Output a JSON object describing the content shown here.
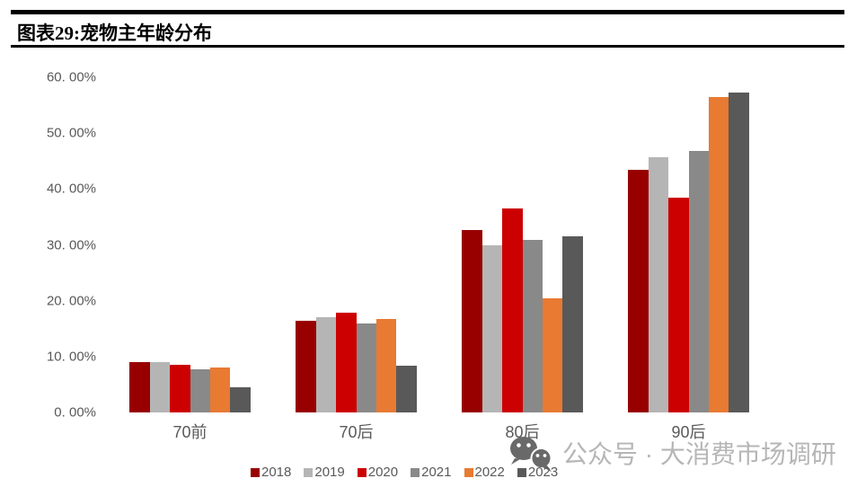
{
  "header": {
    "title": "图表29:宠物主年龄分布"
  },
  "chart_data": {
    "type": "bar",
    "title": "宠物主年龄分布",
    "categories": [
      "70前",
      "70后",
      "80后",
      "90后"
    ],
    "series": [
      {
        "name": "2018",
        "color": "#980000",
        "values": [
          9.0,
          16.4,
          32.7,
          43.4
        ]
      },
      {
        "name": "2019",
        "color": "#B5B5B5",
        "values": [
          9.0,
          17.0,
          30.0,
          45.7
        ]
      },
      {
        "name": "2020",
        "color": "#CC0000",
        "values": [
          8.5,
          17.9,
          36.5,
          38.5
        ]
      },
      {
        "name": "2021",
        "color": "#898989",
        "values": [
          7.8,
          16.0,
          30.9,
          46.8
        ]
      },
      {
        "name": "2022",
        "color": "#E87A32",
        "values": [
          8.0,
          16.8,
          20.5,
          56.5
        ]
      },
      {
        "name": "2023",
        "color": "#595959",
        "values": [
          4.5,
          8.3,
          31.5,
          57.2
        ]
      }
    ],
    "xlabel": "",
    "ylabel": "",
    "ylim": [
      0,
      60
    ],
    "ytick_step": 10,
    "ytick_labels": [
      "0. 00%",
      "10. 00%",
      "20. 00%",
      "30. 00%",
      "40. 00%",
      "50. 00%",
      "60. 00%"
    ],
    "grid": false,
    "legend_position": "bottom"
  },
  "watermark": {
    "icon": "wechat-icon",
    "text": "公众号 · 大消费市场调研"
  }
}
